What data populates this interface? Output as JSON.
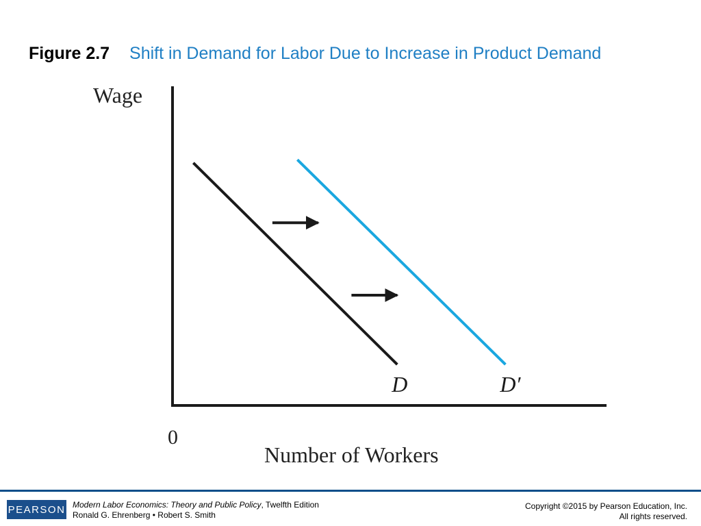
{
  "header": {
    "figure_number": "Figure 2.7",
    "figure_title": "Shift in Demand for Labor Due to Increase in Product Demand"
  },
  "chart_data": {
    "type": "line",
    "xlabel": "Number of Workers",
    "ylabel": "Wage",
    "origin_label": "0",
    "xlim": [
      0,
      10
    ],
    "ylim": [
      0,
      10
    ],
    "grid": false,
    "series": [
      {
        "name": "D",
        "color": "#1a1a1a",
        "x": [
          0.5,
          5.4
        ],
        "y": [
          7.7,
          1.3
        ]
      },
      {
        "name": "D′",
        "color": "#1aa7e0",
        "x": [
          3.0,
          8.0
        ],
        "y": [
          7.8,
          1.3
        ]
      }
    ],
    "shift_arrows": [
      {
        "x_from": 2.4,
        "x_to": 3.5,
        "y": 5.8
      },
      {
        "x_from": 4.3,
        "x_to": 5.4,
        "y": 3.5
      }
    ]
  },
  "colors": {
    "title_blue": "#1f7fc4",
    "footer_blue": "#1b4f8c"
  },
  "footer": {
    "logo": "PEARSON",
    "book_title": "Modern Labor Economics: Theory and Public Policy",
    "edition": ", Twelfth Edition",
    "authors": "Ronald G. Ehrenberg • Robert S. Smith",
    "copyright": "Copyright ©2015 by Pearson Education, Inc.",
    "rights": "All rights reserved."
  }
}
